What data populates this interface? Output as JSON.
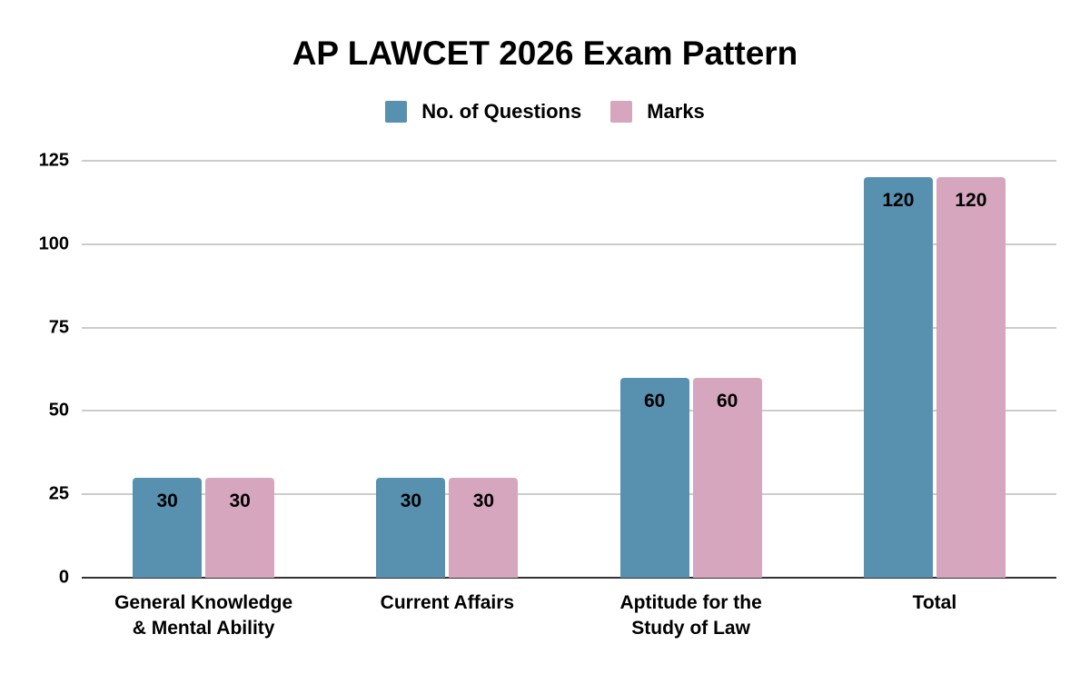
{
  "chart_data": {
    "type": "bar",
    "title": "AP LAWCET 2026 Exam Pattern",
    "xlabel": "",
    "ylabel": "",
    "ylim": [
      0,
      125
    ],
    "yticks": [
      0,
      25,
      50,
      75,
      100,
      125
    ],
    "grid": true,
    "legend_position": "top",
    "categories": [
      "General Knowledge & Mental Ability",
      "Current Affairs",
      "Aptitude for the Study of Law",
      "Total"
    ],
    "category_lines": [
      [
        "General Knowledge",
        "& Mental Ability"
      ],
      [
        "Current Affairs"
      ],
      [
        "Aptitude for the",
        "Study of Law"
      ],
      [
        "Total"
      ]
    ],
    "series": [
      {
        "name": "No. of Questions",
        "color": "#5891b0",
        "values": [
          30,
          30,
          60,
          120
        ]
      },
      {
        "name": "Marks",
        "color": "#d5a6bd",
        "values": [
          30,
          30,
          60,
          120
        ]
      }
    ],
    "data_labels": true
  }
}
